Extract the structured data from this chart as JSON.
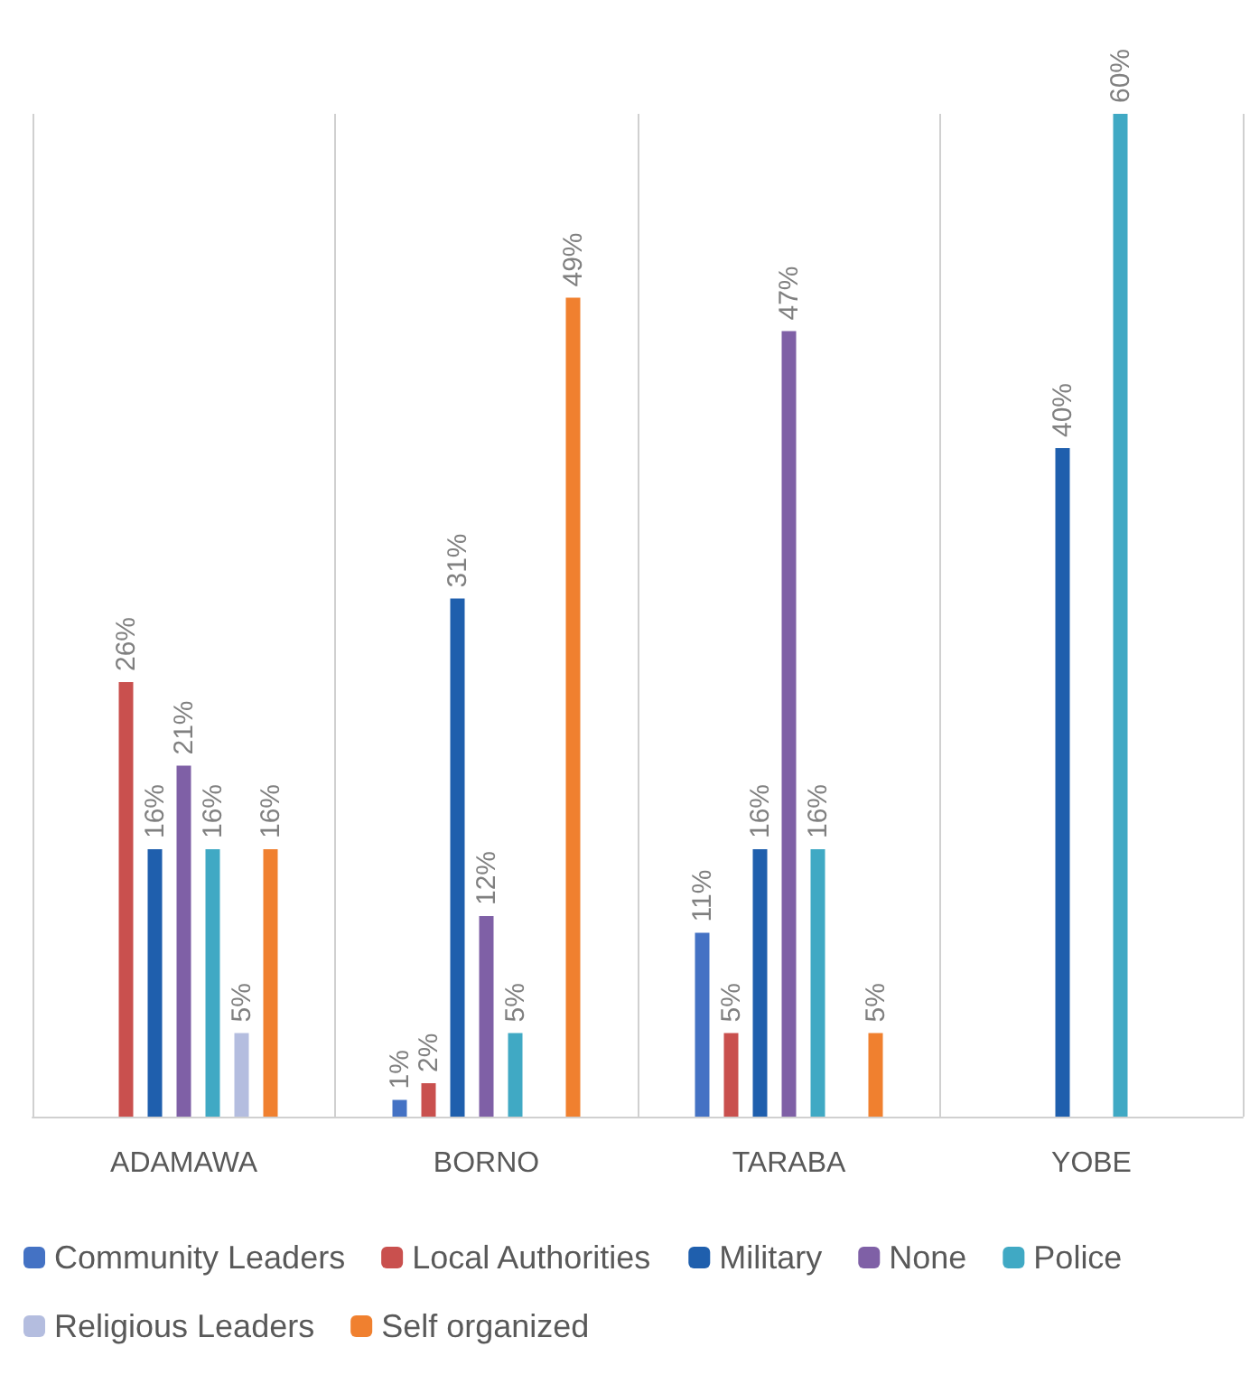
{
  "chart_data": {
    "type": "bar",
    "categories": [
      "ADAMAWA",
      "BORNO",
      "TARABA",
      "YOBE"
    ],
    "series": [
      {
        "name": "Community Leaders",
        "color": "#4472c4",
        "values": [
          null,
          1,
          11,
          null
        ],
        "value_labels": [
          null,
          "1%",
          "11%",
          null
        ]
      },
      {
        "name": "Local Authorities",
        "color": "#c9504e",
        "values": [
          26,
          2,
          5,
          null
        ],
        "value_labels": [
          "26%",
          "2%",
          "5%",
          null
        ]
      },
      {
        "name": "Military",
        "color": "#1f5fad",
        "values": [
          16,
          31,
          16,
          40
        ],
        "value_labels": [
          "16%",
          "31%",
          "16%",
          "40%"
        ]
      },
      {
        "name": "None",
        "color": "#7f60a6",
        "values": [
          21,
          12,
          47,
          null
        ],
        "value_labels": [
          "21%",
          "12%",
          "47%",
          null
        ]
      },
      {
        "name": "Police",
        "color": "#40a9c4",
        "values": [
          16,
          5,
          16,
          60
        ],
        "value_labels": [
          "16%",
          "5%",
          "16%",
          "60%"
        ]
      },
      {
        "name": "Religious Leaders",
        "color": "#b4bddf",
        "values": [
          5,
          null,
          null,
          null
        ],
        "value_labels": [
          "5%",
          null,
          null,
          null
        ]
      },
      {
        "name": "Self organized",
        "color": "#f0802f",
        "values": [
          16,
          49,
          5,
          null
        ],
        "value_labels": [
          "16%",
          "49%",
          "5%",
          null
        ]
      }
    ],
    "grid": "x",
    "legend": "bottom"
  }
}
